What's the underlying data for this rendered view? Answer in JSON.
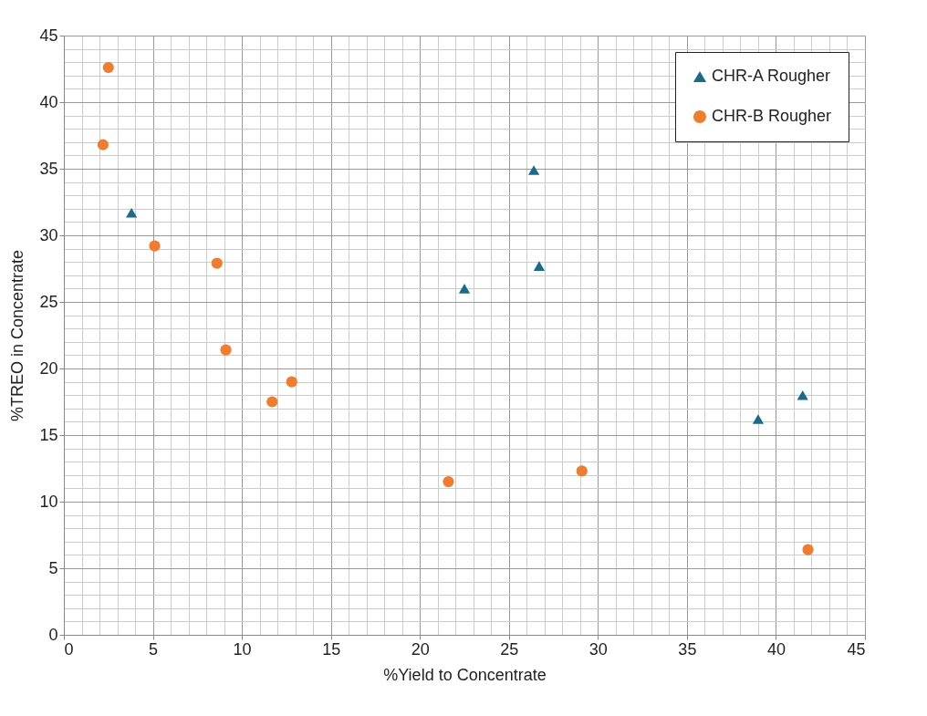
{
  "chart_data": {
    "type": "scatter",
    "xlabel": "%Yield to Concentrate",
    "ylabel": "%TREO in Concentrate",
    "xlim": [
      0,
      45
    ],
    "xticks": [
      0,
      5,
      10,
      15,
      20,
      25,
      30,
      35,
      40,
      45
    ],
    "ylim": [
      0,
      45
    ],
    "yticks": [
      0,
      5,
      10,
      15,
      20,
      25,
      30,
      35,
      40,
      45
    ],
    "grid": true,
    "legend": "top right",
    "series": [
      {
        "name": "CHR-A Rougher",
        "color": "#1b6a8a",
        "marker": "triangle",
        "x": [
          3.8,
          26.4,
          22.5,
          26.7,
          39.0,
          41.5
        ],
        "values": [
          31.7,
          34.9,
          26.0,
          27.7,
          16.2,
          18.0
        ]
      },
      {
        "name": "CHR-B Rougher",
        "color": "#ed7d31",
        "marker": "circle",
        "x": [
          2.5,
          2.2,
          5.1,
          8.6,
          9.1,
          11.7,
          12.8,
          21.6,
          29.1,
          41.8
        ],
        "values": [
          42.6,
          36.8,
          29.2,
          27.9,
          21.4,
          17.5,
          19.0,
          11.5,
          12.3,
          6.4
        ]
      }
    ]
  }
}
